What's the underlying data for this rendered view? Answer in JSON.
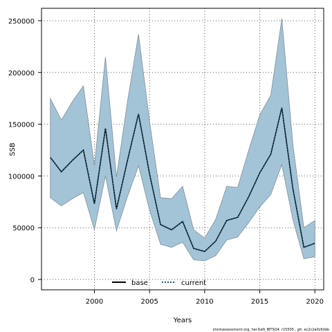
{
  "chart_data": {
    "type": "area",
    "xlabel": "Years",
    "ylabel": "SSB",
    "xlim": [
      1995.2,
      2020.8
    ],
    "ylim": [
      -10000,
      262000
    ],
    "x_ticks": [
      2000,
      2005,
      2010,
      2015,
      2020
    ],
    "y_ticks": [
      0,
      50000,
      100000,
      150000,
      200000,
      250000
    ],
    "grid": true,
    "legend_placement": "bottom-center",
    "x": [
      1996,
      1997,
      1998,
      1999,
      2000,
      2001,
      2002,
      2003,
      2004,
      2005,
      2006,
      2007,
      2008,
      2009,
      2010,
      2011,
      2012,
      2013,
      2014,
      2015,
      2016,
      2017,
      2018,
      2019,
      2020
    ],
    "series": [
      {
        "name": "base",
        "values": [
          118000,
          104000,
          115000,
          125000,
          73000,
          146000,
          68000,
          115000,
          160000,
          102000,
          53000,
          48000,
          56000,
          30000,
          27000,
          37000,
          57000,
          60000,
          80000,
          103000,
          121000,
          166000,
          88000,
          31000,
          35000
        ],
        "color": "#000000",
        "line_style": "solid"
      },
      {
        "name": "current",
        "values": [
          118000,
          104000,
          115000,
          125000,
          73000,
          146000,
          68000,
          115000,
          160000,
          102000,
          53000,
          48000,
          56000,
          30000,
          27000,
          37000,
          57000,
          60000,
          80000,
          103000,
          121000,
          166000,
          88000,
          31000,
          35000
        ],
        "color": "#1b4f72",
        "line_style": "dotted"
      }
    ],
    "band": {
      "lower": [
        79000,
        71000,
        78000,
        84000,
        48000,
        100000,
        47000,
        80000,
        110000,
        67000,
        34000,
        31000,
        36000,
        19000,
        18000,
        23000,
        38000,
        41000,
        55000,
        70000,
        82000,
        111000,
        58000,
        20000,
        22000
      ],
      "upper": [
        175000,
        154000,
        172000,
        187000,
        110000,
        215000,
        99000,
        172000,
        237000,
        153000,
        79000,
        78000,
        90000,
        48000,
        40000,
        58000,
        90000,
        89000,
        125000,
        159000,
        178000,
        252000,
        131000,
        50000,
        57000
      ],
      "color": "#a3c4d6",
      "edge_color": "#7f8e96"
    },
    "footnote": "stockassessment.org, her.6aN_IBTSQ4, r15505 , git: ec2c2a0c6dde"
  }
}
